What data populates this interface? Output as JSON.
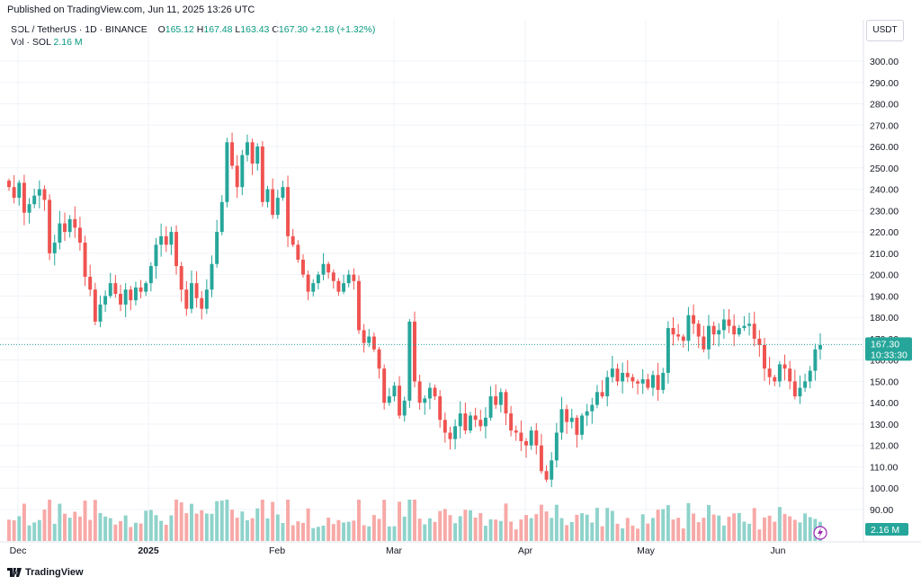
{
  "header": {
    "published": "Published on TradingView.com, Jun 11, 2025 13:26 UTC",
    "symbol": "SOL / TetherUS · 1D · BINANCE",
    "open_label": "O",
    "open": "165.12",
    "high_label": "H",
    "high": "167.48",
    "low_label": "L",
    "low": "163.43",
    "close_label": "C",
    "close": "167.30",
    "change": "+2.18 (+1.32%)",
    "vol_label": "Vol · SOL",
    "vol_value": "2.16 M",
    "currency": "USDT"
  },
  "footer": {
    "brand": "TradingView"
  },
  "colors": {
    "up": "#26a69a",
    "down": "#ef5350",
    "vol_up": "#8fd3cb",
    "vol_down": "#f7a9a7",
    "grid": "#f0f3fa",
    "axis_text": "#131722"
  },
  "chart_data": {
    "type": "candlestick",
    "symbol": "SOL / TetherUS",
    "timeframe": "1D",
    "exchange": "BINANCE",
    "y_ticks": [
      "90.00",
      "100.00",
      "110.00",
      "120.00",
      "130.00",
      "140.00",
      "150.00",
      "160.00",
      "170.00",
      "180.00",
      "190.00",
      "200.00",
      "210.00",
      "220.00",
      "230.00",
      "240.00",
      "250.00",
      "260.00",
      "270.00",
      "280.00",
      "290.00",
      "300.00"
    ],
    "y_range": [
      85,
      310
    ],
    "x_tick_labels": [
      "Dec",
      "2025",
      "Feb",
      "Mar",
      "Apr",
      "May",
      "Jun"
    ],
    "last_price": "167.30",
    "countdown": "10:33:30",
    "volume_badge": "2.16 M",
    "closes": [
      241,
      236,
      243,
      229,
      233,
      237,
      240,
      235,
      210,
      215,
      224,
      220,
      226,
      222,
      215,
      199,
      193,
      178,
      186,
      190,
      196,
      191,
      186,
      193,
      188,
      194,
      192,
      196,
      204,
      214,
      218,
      214,
      220,
      204,
      193,
      184,
      196,
      189,
      184,
      193,
      205,
      220,
      234,
      262,
      251,
      241,
      256,
      262,
      252,
      260,
      234,
      240,
      228,
      236,
      241,
      218,
      214,
      207,
      200,
      192,
      196,
      200,
      205,
      201,
      197,
      192,
      196,
      200,
      197,
      174,
      168,
      171,
      165,
      156,
      140,
      143,
      148,
      134,
      141,
      178,
      150,
      140,
      142,
      147,
      143,
      132,
      126,
      123,
      129,
      135,
      127,
      134,
      132,
      129,
      133,
      143,
      139,
      145,
      135,
      127,
      126,
      122,
      120,
      127,
      120,
      108,
      104,
      113,
      126,
      137,
      131,
      133,
      125,
      134,
      136,
      139,
      145,
      143,
      152,
      156,
      150,
      154,
      152,
      150,
      149,
      151,
      147,
      153,
      146,
      154,
      175,
      172,
      171,
      169,
      181,
      177,
      171,
      165,
      176,
      172,
      174,
      179,
      176,
      172,
      175,
      176,
      177,
      170,
      167,
      156,
      152,
      150,
      158,
      156,
      150,
      143,
      147,
      150,
      155,
      165,
      167
    ]
  }
}
